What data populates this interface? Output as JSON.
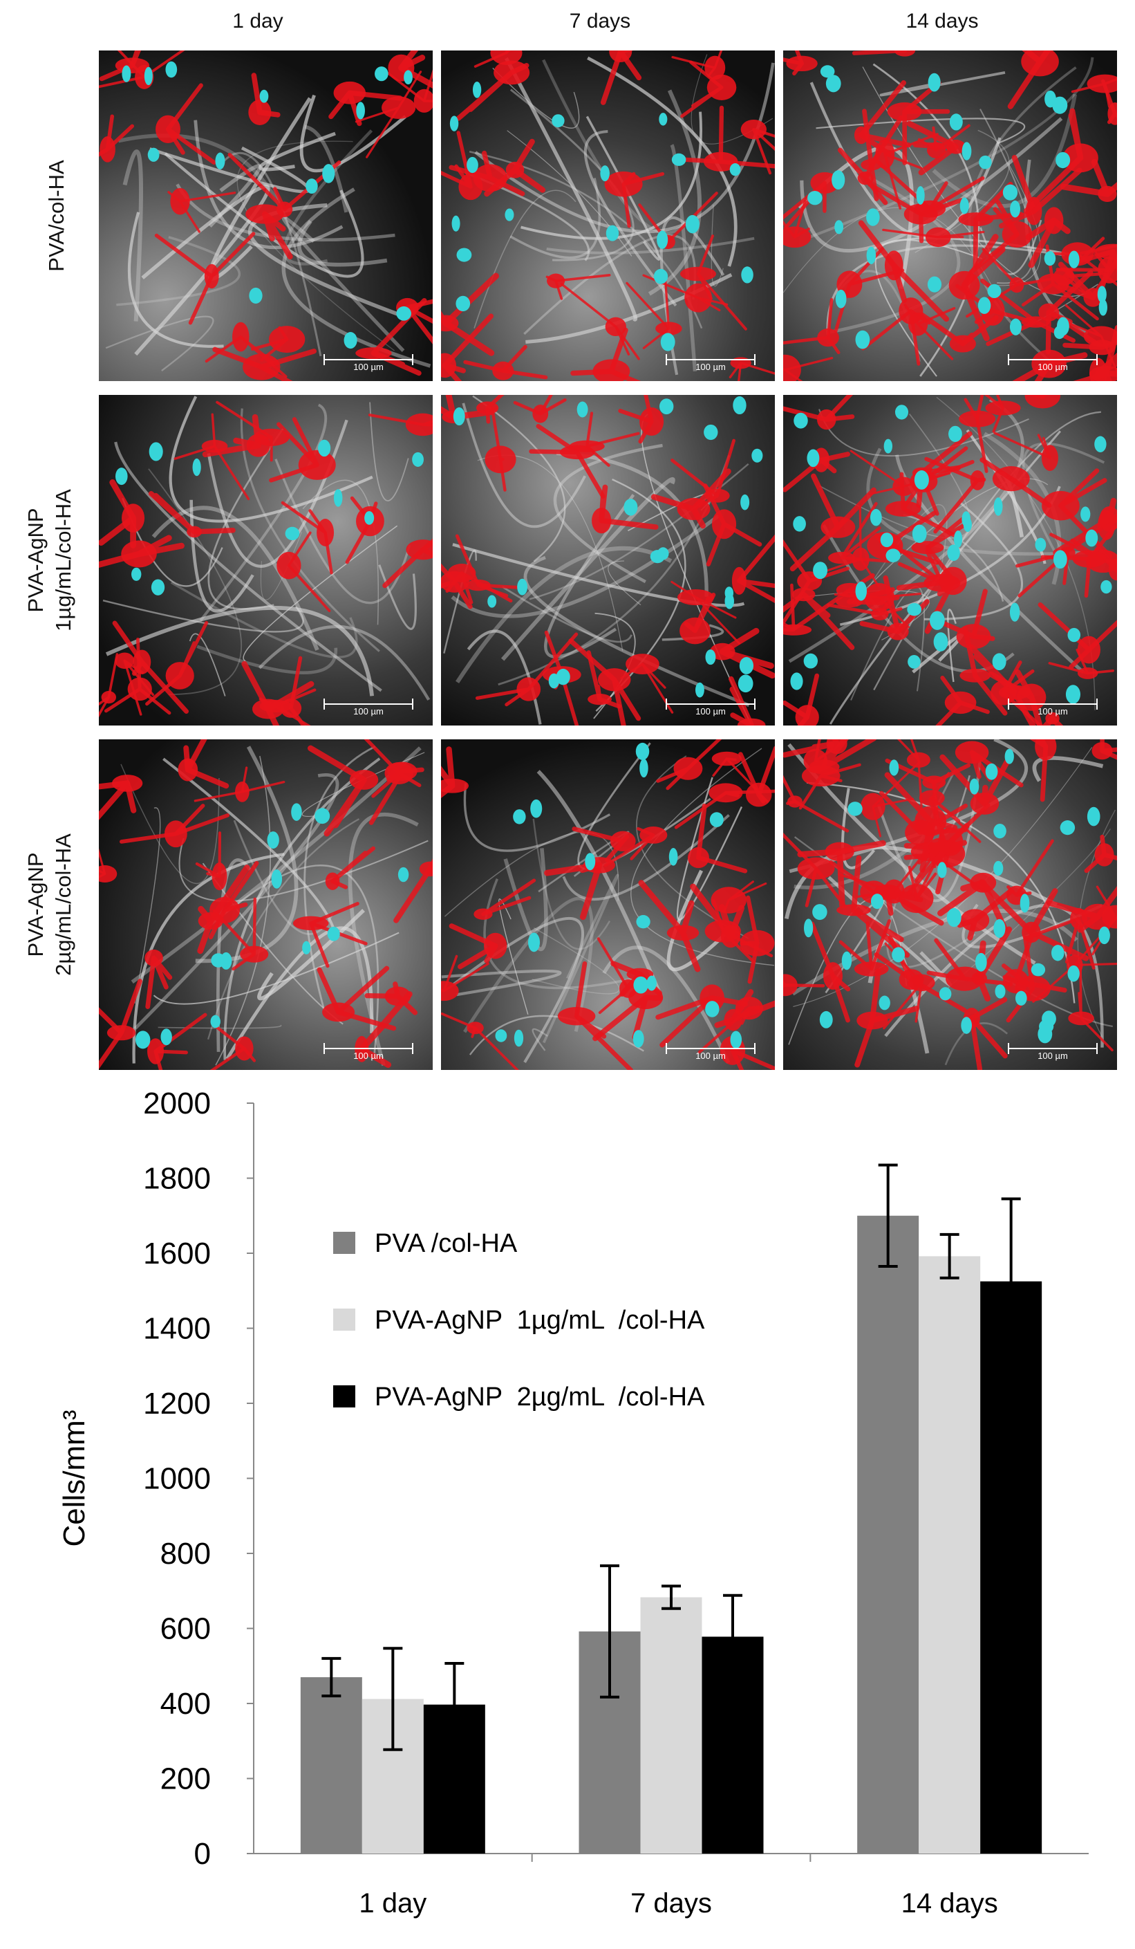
{
  "image_grid": {
    "columns": [
      "1 day",
      "7 days",
      "14 days"
    ],
    "rows": [
      {
        "label_lines": [
          "PVA/col-HA"
        ]
      },
      {
        "label_lines": [
          "PVA-AgNP",
          "1µg/mL/col-HA"
        ]
      },
      {
        "label_lines": [
          "PVA-AgNP",
          "2µg/mL/col-HA"
        ]
      }
    ],
    "scale_bar_label": "100 µm",
    "stain_colors": {
      "actin": "#e8141c",
      "nuclei": "#37d4d8",
      "scaffold": "#d8d8d8"
    }
  },
  "chart_data": {
    "type": "bar",
    "categories": [
      "1 day",
      "7 days",
      "14 days"
    ],
    "series": [
      {
        "name": "PVA /col-HA",
        "color": "#808080",
        "values": [
          470,
          592,
          1700
        ],
        "errors": [
          50,
          175,
          135
        ]
      },
      {
        "name": "PVA-AgNP  1µg/mL  /col-HA",
        "color": "#d9d9d9",
        "values": [
          412,
          683,
          1592
        ],
        "errors": [
          135,
          30,
          58
        ]
      },
      {
        "name": "PVA-AgNP  2µg/mL  /col-HA",
        "color": "#000000",
        "values": [
          397,
          578,
          1525
        ],
        "errors": [
          110,
          110,
          220
        ]
      }
    ],
    "xlabel": "",
    "ylabel": "Cells/mm³",
    "ylim": [
      0,
      2000
    ],
    "yticks": [
      "0",
      "200",
      "400",
      "600",
      "800",
      "1000",
      "1200",
      "1400",
      "1600",
      "1800",
      "2000"
    ],
    "grid": false,
    "legend_position": "top-left"
  }
}
